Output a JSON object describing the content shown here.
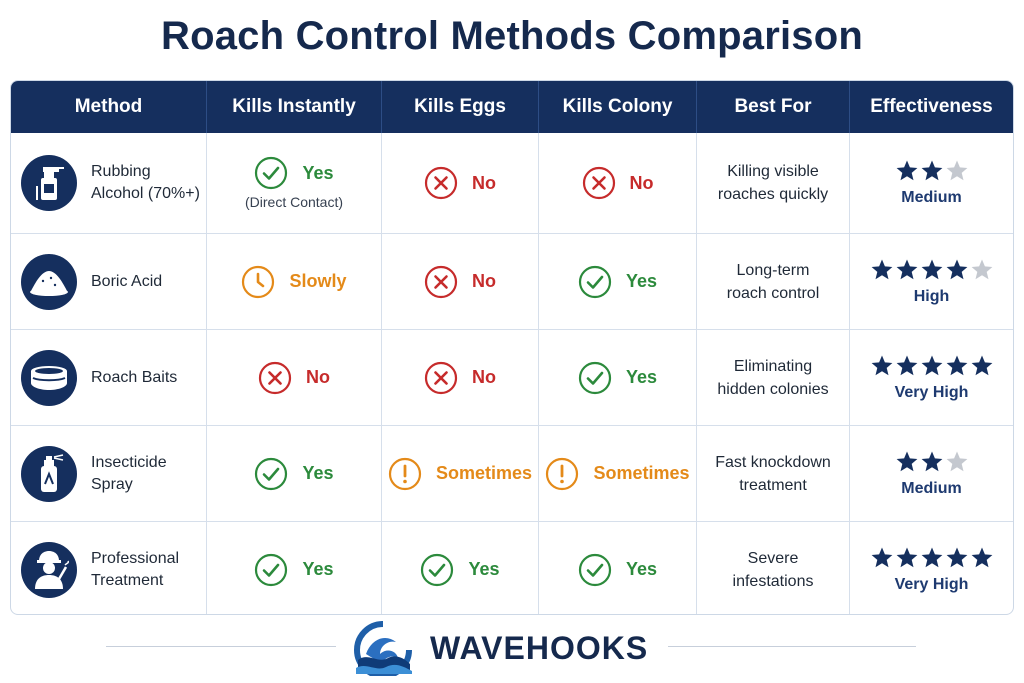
{
  "title": "Roach Control Methods Comparison",
  "headers": [
    "Method",
    "Kills Instantly",
    "Kills Eggs",
    "Kills Colony",
    "Best For",
    "Effectiveness"
  ],
  "rows": [
    {
      "method": "Rubbing Alcohol (70%+)",
      "icon": "spray-bottle-icon",
      "instant": {
        "status": "yes",
        "label": "Yes",
        "note": "(Direct Contact)"
      },
      "eggs": {
        "status": "no",
        "label": "No"
      },
      "colony": {
        "status": "no",
        "label": "No"
      },
      "best_for": [
        "Killing visible",
        "roaches quickly"
      ],
      "stars": 2,
      "rating": "Medium"
    },
    {
      "method": "Boric Acid",
      "icon": "powder-pile-icon",
      "instant": {
        "status": "slow",
        "label": "Slowly"
      },
      "eggs": {
        "status": "no",
        "label": "No"
      },
      "colony": {
        "status": "yes",
        "label": "Yes"
      },
      "best_for": [
        "Long-term",
        "roach control"
      ],
      "stars": 4,
      "rating": "High"
    },
    {
      "method": "Roach Baits",
      "icon": "bait-station-icon",
      "instant": {
        "status": "no",
        "label": "No"
      },
      "eggs": {
        "status": "no",
        "label": "No"
      },
      "colony": {
        "status": "yes",
        "label": "Yes"
      },
      "best_for": [
        "Eliminating",
        "hidden colonies"
      ],
      "stars": 5,
      "rating": "Very High"
    },
    {
      "method": "Insecticide Spray",
      "icon": "spray-can-icon",
      "instant": {
        "status": "yes",
        "label": "Yes"
      },
      "eggs": {
        "status": "warn",
        "label": "Sometimes"
      },
      "colony": {
        "status": "warn",
        "label": "Sometimes"
      },
      "best_for": [
        "Fast knockdown",
        "treatment"
      ],
      "stars": 2,
      "rating": "Medium"
    },
    {
      "method": "Professional Treatment",
      "icon": "exterminator-icon",
      "instant": {
        "status": "yes",
        "label": "Yes"
      },
      "eggs": {
        "status": "yes",
        "label": "Yes"
      },
      "colony": {
        "status": "yes",
        "label": "Yes"
      },
      "best_for": [
        "Severe",
        "infestations"
      ],
      "stars": 5,
      "rating": "Very High"
    }
  ],
  "brand": "WAVEHOOKS",
  "colors": {
    "header_bg": "#152f5e",
    "yes": "#2c8a3c",
    "no": "#c62b2b",
    "warn": "#e48a19",
    "star_on": "#152f5e",
    "star_off": "#c4c8cf"
  }
}
